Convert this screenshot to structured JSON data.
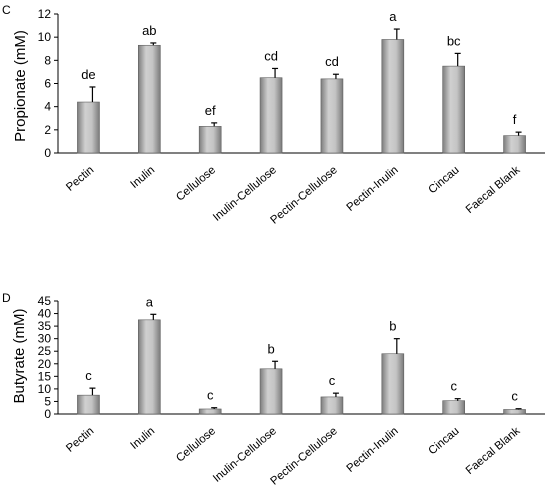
{
  "chart_data": [
    {
      "panel": "C",
      "type": "bar",
      "ylabel": "Propionate (mM)",
      "ylim": [
        0,
        12
      ],
      "yticks": [
        0,
        2,
        4,
        6,
        8,
        10,
        12
      ],
      "categories": [
        "Pectin",
        "Inulin",
        "Cellulose",
        "Inulin-Cellulose",
        "Pectin-Cellulose",
        "Pectin-Inulin",
        "Cincau",
        "Faecal Blank"
      ],
      "values": [
        4.4,
        9.3,
        2.3,
        6.5,
        6.4,
        9.8,
        7.5,
        1.5
      ],
      "error_upper": [
        1.3,
        0.2,
        0.3,
        0.8,
        0.4,
        0.9,
        1.1,
        0.3
      ],
      "significance": [
        "de",
        "ab",
        "ef",
        "cd",
        "cd",
        "a",
        "bc",
        "f"
      ],
      "bar_color": "#a6a6a6"
    },
    {
      "panel": "D",
      "type": "bar",
      "ylabel": "Butyrate (mM)",
      "ylim": [
        0,
        45
      ],
      "yticks": [
        0,
        5,
        10,
        15,
        20,
        25,
        30,
        35,
        40,
        45
      ],
      "categories": [
        "Pectin",
        "Inulin",
        "Cellulose",
        "Inulin-Cellulose",
        "Pectin-Cellulose",
        "Pectin-Inulin",
        "Cincau",
        "Faecal Blank"
      ],
      "values": [
        7.5,
        37.5,
        2.0,
        18.0,
        6.8,
        24.0,
        5.3,
        1.8
      ],
      "error_upper": [
        2.8,
        2.2,
        0.5,
        3.0,
        1.5,
        6.0,
        0.8,
        0.3
      ],
      "significance": [
        "c",
        "a",
        "c",
        "b",
        "c",
        "b",
        "c",
        "c"
      ],
      "bar_color": "#a6a6a6"
    }
  ]
}
